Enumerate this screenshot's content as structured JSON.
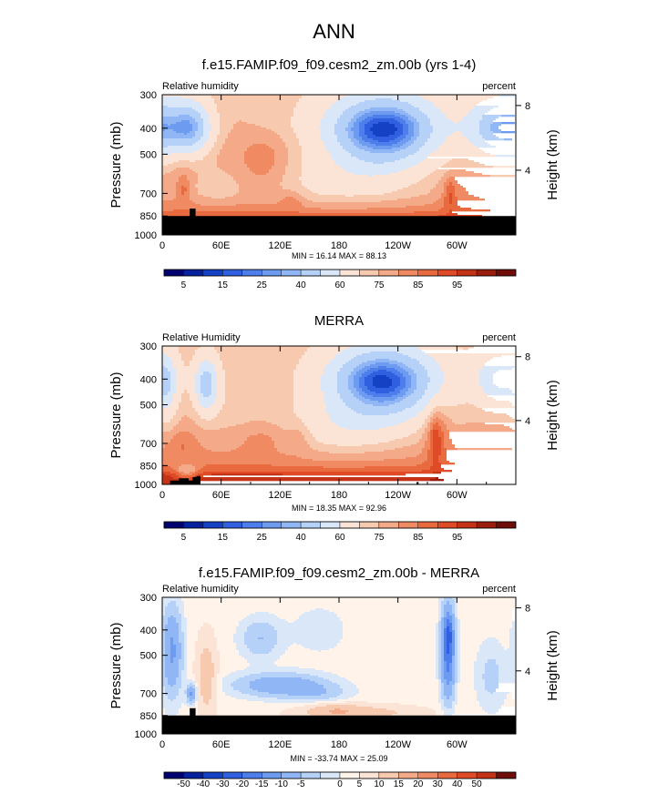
{
  "figure_title": "ANN",
  "colors": {
    "seq": [
      "#00006e",
      "#05219e",
      "#1542c5",
      "#3060e0",
      "#4d7eec",
      "#6c9bf0",
      "#91b6f5",
      "#b6d1f7",
      "#d9e7f8",
      "#fbe4d6",
      "#f7c9ae",
      "#f4aa88",
      "#f08a62",
      "#ea6a40",
      "#df4a27",
      "#c43318",
      "#9b1d0e",
      "#6e0d07"
    ],
    "diff": [
      "#00006e",
      "#05219e",
      "#1542c5",
      "#3060e0",
      "#4d7eec",
      "#6c9bf0",
      "#91b6f5",
      "#b6d1f7",
      "#d9e7f8",
      "#fff3ea",
      "#fbe4d6",
      "#f7c9ae",
      "#f4aa88",
      "#f08a62",
      "#ea6a40",
      "#df4a27",
      "#c43318",
      "#6e0d07"
    ],
    "terrain": "#000000"
  },
  "chart_data": [
    {
      "type": "heatmap",
      "title": "f.e15.FAMIP.f09_f09.cesm2_zm.00b (yrs 1-4)",
      "left_string": "Relative humidity",
      "right_string": "percent",
      "ylabel": "Pressure (mb)",
      "ylabel_right": "Height (km)",
      "x_ticks": [
        "0",
        "60E",
        "120E",
        "180",
        "120W",
        "60W"
      ],
      "y_ticks": [
        "300",
        "400",
        "500",
        "700",
        "850",
        "1000"
      ],
      "y_ticks_right": [
        "8",
        "4"
      ],
      "stats": "MIN = 16.14  MAX = 88.13",
      "palette": "seq",
      "colorbar_labels": [
        "5",
        "15",
        "25",
        "40",
        "60",
        "75",
        "85",
        "95"
      ],
      "base": 66,
      "base_profile": [
        [
          300,
          -4
        ],
        [
          400,
          -4
        ],
        [
          500,
          0
        ],
        [
          600,
          2
        ],
        [
          700,
          2
        ],
        [
          780,
          6
        ],
        [
          820,
          10
        ],
        [
          850,
          14
        ],
        [
          1000,
          16
        ]
      ],
      "blobs": [
        {
          "lon": 225,
          "p": 410,
          "dlon": 55,
          "dp": 150,
          "amp": -48
        },
        {
          "lon": 226,
          "p": 400,
          "dlon": 30,
          "dp": 60,
          "amp": -8
        },
        {
          "lon": 30,
          "p": 400,
          "dlon": 20,
          "dp": 100,
          "amp": -28
        },
        {
          "lon": 350,
          "p": 400,
          "dlon": 35,
          "dp": 120,
          "amp": -38
        },
        {
          "lon": 178,
          "p": 630,
          "dlon": 80,
          "dp": 170,
          "amp": -10
        },
        {
          "lon": 105,
          "p": 520,
          "dlon": 25,
          "dp": 160,
          "amp": 8
        },
        {
          "lon": 70,
          "p": 400,
          "dlon": 25,
          "dp": 180,
          "amp": 3
        },
        {
          "lon": 132,
          "p": 740,
          "dlon": 12,
          "dp": 70,
          "amp": 6
        },
        {
          "lon": 22,
          "p": 680,
          "dlon": 6,
          "dp": 80,
          "amp": 8
        },
        {
          "lon": 293,
          "p": 700,
          "dlon": 6,
          "dp": 110,
          "amp": 10
        },
        {
          "lon": 300,
          "p": 700,
          "dlon": 20,
          "dp": 140,
          "amp": 4
        },
        {
          "lon": 55,
          "p": 660,
          "dlon": 25,
          "dp": 110,
          "amp": -6
        },
        {
          "lon": 20,
          "p": 550,
          "dlon": 15,
          "dp": 130,
          "amp": 4
        }
      ],
      "terrain": [
        [
          0,
          850
        ],
        [
          28,
          850
        ],
        [
          28,
          797
        ],
        [
          34,
          797
        ],
        [
          34,
          850
        ],
        [
          360,
          850
        ]
      ]
    },
    {
      "type": "heatmap",
      "title": "MERRA",
      "left_string": "Relative Humidity",
      "right_string": "percent",
      "ylabel": "Pressure (mb)",
      "ylabel_right": "Height (km)",
      "x_ticks": [
        "0",
        "60E",
        "120E",
        "180",
        "120W",
        "60W"
      ],
      "y_ticks": [
        "300",
        "400",
        "500",
        "700",
        "850",
        "1000"
      ],
      "y_ticks_right": [
        "8",
        "4"
      ],
      "stats": "MIN = 18.35  MAX = 92.96",
      "palette": "seq",
      "colorbar_labels": [
        "5",
        "15",
        "25",
        "40",
        "60",
        "75",
        "85",
        "95"
      ],
      "base": 67,
      "base_profile": [
        [
          300,
          -4
        ],
        [
          400,
          -4
        ],
        [
          500,
          -2
        ],
        [
          600,
          0
        ],
        [
          700,
          2
        ],
        [
          800,
          5
        ],
        [
          880,
          11
        ],
        [
          920,
          19
        ],
        [
          960,
          22
        ],
        [
          1000,
          18
        ]
      ],
      "blobs": [
        {
          "lon": 225,
          "p": 410,
          "dlon": 55,
          "dp": 150,
          "amp": -48
        },
        {
          "lon": 222,
          "p": 410,
          "dlon": 25,
          "dp": 60,
          "amp": -8
        },
        {
          "lon": 45,
          "p": 420,
          "dlon": 12,
          "dp": 110,
          "amp": -30
        },
        {
          "lon": 345,
          "p": 400,
          "dlon": 25,
          "dp": 110,
          "amp": -25
        },
        {
          "lon": 180,
          "p": 620,
          "dlon": 70,
          "dp": 160,
          "amp": -12
        },
        {
          "lon": 5,
          "p": 430,
          "dlon": 10,
          "dp": 160,
          "amp": -15
        },
        {
          "lon": 105,
          "p": 660,
          "dlon": 35,
          "dp": 100,
          "amp": 6
        },
        {
          "lon": 140,
          "p": 650,
          "dlon": 12,
          "dp": 100,
          "amp": 5
        },
        {
          "lon": 20,
          "p": 700,
          "dlon": 15,
          "dp": 90,
          "amp": 6
        },
        {
          "lon": 280,
          "p": 640,
          "dlon": 12,
          "dp": 210,
          "amp": 12
        },
        {
          "lon": 278,
          "p": 680,
          "dlon": 5,
          "dp": 140,
          "amp": 8
        },
        {
          "lon": 25,
          "p": 900,
          "dlon": 12,
          "dp": 70,
          "amp": -14
        },
        {
          "lon": 70,
          "p": 540,
          "dlon": 25,
          "dp": 180,
          "amp": -3
        }
      ],
      "terrain": [
        [
          0,
          1000
        ],
        [
          8,
          1000
        ],
        [
          8,
          967
        ],
        [
          17,
          967
        ],
        [
          17,
          948
        ],
        [
          27,
          948
        ],
        [
          27,
          966
        ],
        [
          31,
          966
        ],
        [
          31,
          938
        ],
        [
          35,
          938
        ],
        [
          35,
          930
        ],
        [
          39,
          930
        ],
        [
          39,
          1000
        ],
        [
          259,
          1000
        ],
        [
          259,
          980
        ],
        [
          261,
          980
        ],
        [
          261,
          1000
        ],
        [
          360,
          1000
        ]
      ]
    },
    {
      "type": "heatmap",
      "title": "f.e15.FAMIP.f09_f09.cesm2_zm.00b - MERRA",
      "left_string": "Relative humidity",
      "right_string": "percent",
      "ylabel": "Pressure (mb)",
      "ylabel_right": "Height (km)",
      "x_ticks": [
        "0",
        "60E",
        "120E",
        "180",
        "120W",
        "60W"
      ],
      "y_ticks": [
        "300",
        "400",
        "500",
        "700",
        "850",
        "1000"
      ],
      "y_ticks_right": [
        "8",
        "4"
      ],
      "stats": "MIN = -33.74  MAX = 25.09",
      "palette": "diff",
      "colorbar_labels": [
        "-50",
        "-40",
        "-30",
        "-20",
        "-15",
        "-10",
        "-5",
        "0",
        "5",
        "10",
        "15",
        "20",
        "30",
        "40",
        "50"
      ],
      "base": 1,
      "base_profile": [],
      "blobs": [
        {
          "lon": 291,
          "p": 480,
          "dlon": 7,
          "dp": 230,
          "amp": -20
        },
        {
          "lon": 292,
          "p": 410,
          "dlon": 4,
          "dp": 60,
          "amp": -8
        },
        {
          "lon": 10,
          "p": 480,
          "dlon": 10,
          "dp": 220,
          "amp": -12
        },
        {
          "lon": 30,
          "p": 700,
          "dlon": 5,
          "dp": 60,
          "amp": -12
        },
        {
          "lon": 120,
          "p": 650,
          "dlon": 45,
          "dp": 70,
          "amp": -10
        },
        {
          "lon": 100,
          "p": 430,
          "dlon": 20,
          "dp": 80,
          "amp": -6
        },
        {
          "lon": 160,
          "p": 700,
          "dlon": 30,
          "dp": 60,
          "amp": -4
        },
        {
          "lon": 45,
          "p": 600,
          "dlon": 10,
          "dp": 240,
          "amp": 7
        },
        {
          "lon": 200,
          "p": 830,
          "dlon": 60,
          "dp": 60,
          "amp": 6
        },
        {
          "lon": 175,
          "p": 810,
          "dlon": 25,
          "dp": 50,
          "amp": 5
        },
        {
          "lon": 335,
          "p": 600,
          "dlon": 15,
          "dp": 200,
          "amp": -4
        },
        {
          "lon": 160,
          "p": 400,
          "dlon": 30,
          "dp": 100,
          "amp": -2
        }
      ],
      "terrain": [
        [
          0,
          850
        ],
        [
          28,
          850
        ],
        [
          28,
          797
        ],
        [
          34,
          797
        ],
        [
          34,
          850
        ],
        [
          360,
          850
        ]
      ]
    }
  ]
}
